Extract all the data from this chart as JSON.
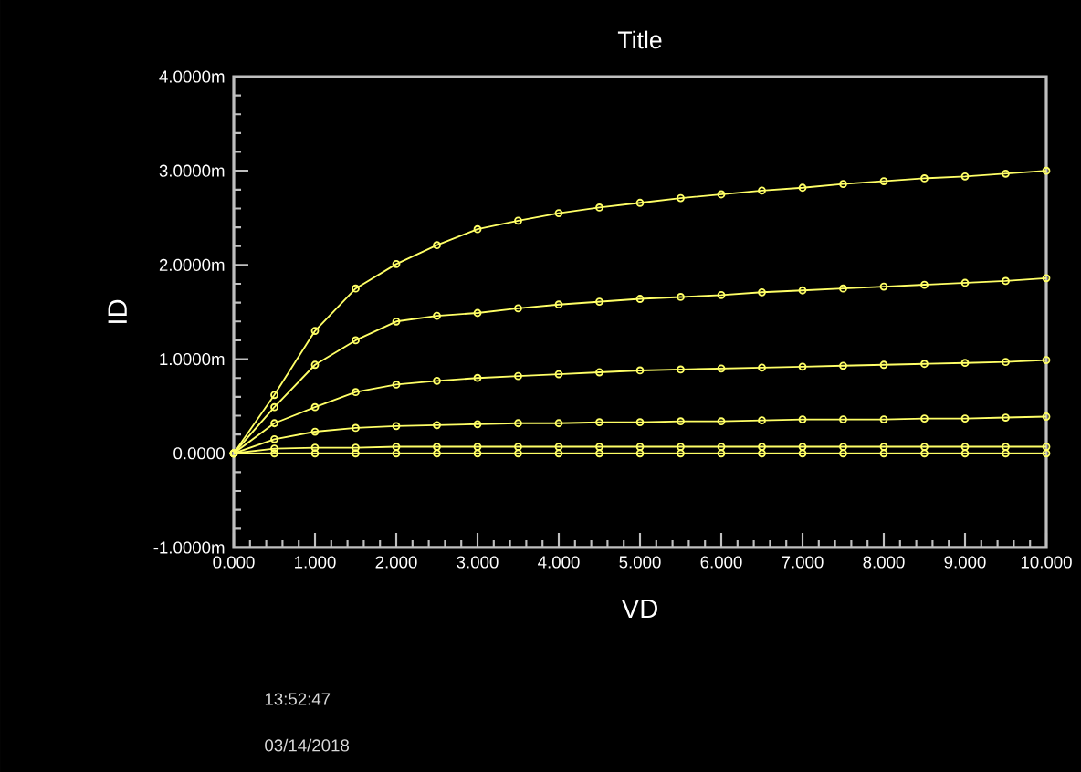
{
  "chart_data": {
    "type": "line",
    "title": "Title",
    "xlabel": "VD",
    "ylabel": "ID",
    "annotations": [
      "13:52:47",
      "03/14/2018"
    ],
    "x": [
      0,
      0.5,
      1,
      1.5,
      2,
      2.5,
      3,
      3.5,
      4,
      4.5,
      5,
      5.5,
      6,
      6.5,
      7,
      7.5,
      8,
      8.5,
      9,
      9.5,
      10
    ],
    "series": [
      {
        "color": "#ffff66",
        "values": [
          0,
          0.62,
          1.3,
          1.75,
          2.01,
          2.21,
          2.38,
          2.47,
          2.55,
          2.61,
          2.66,
          2.71,
          2.75,
          2.79,
          2.82,
          2.86,
          2.89,
          2.92,
          2.94,
          2.97,
          3.0
        ]
      },
      {
        "color": "#ffff66",
        "values": [
          0,
          0.49,
          0.94,
          1.2,
          1.4,
          1.46,
          1.49,
          1.54,
          1.58,
          1.61,
          1.64,
          1.66,
          1.68,
          1.71,
          1.73,
          1.75,
          1.77,
          1.79,
          1.81,
          1.83,
          1.86
        ]
      },
      {
        "color": "#ffff66",
        "values": [
          0,
          0.32,
          0.49,
          0.65,
          0.73,
          0.77,
          0.8,
          0.82,
          0.84,
          0.86,
          0.88,
          0.89,
          0.9,
          0.91,
          0.92,
          0.93,
          0.94,
          0.95,
          0.96,
          0.97,
          0.99
        ]
      },
      {
        "color": "#ffff66",
        "values": [
          0,
          0.15,
          0.23,
          0.27,
          0.29,
          0.3,
          0.31,
          0.32,
          0.32,
          0.33,
          0.33,
          0.34,
          0.34,
          0.35,
          0.36,
          0.36,
          0.36,
          0.37,
          0.37,
          0.38,
          0.39
        ]
      },
      {
        "color": "#ffff66",
        "values": [
          0,
          0.05,
          0.06,
          0.06,
          0.07,
          0.07,
          0.07,
          0.07,
          0.07,
          0.07,
          0.07,
          0.07,
          0.07,
          0.07,
          0.07,
          0.07,
          0.07,
          0.07,
          0.07,
          0.07,
          0.07
        ]
      },
      {
        "color": "#ffff66",
        "values": [
          0,
          0,
          0,
          0,
          0,
          0,
          0,
          0,
          0,
          0,
          0,
          0,
          0,
          0,
          0,
          0,
          0,
          0,
          0,
          0,
          0
        ]
      }
    ],
    "marker": "circle",
    "line_style": "solid",
    "grid": false,
    "xlim": [
      0,
      10
    ],
    "xticks": [
      {
        "value": 0,
        "label": "0.000"
      },
      {
        "value": 1,
        "label": "1.000"
      },
      {
        "value": 2,
        "label": "2.000"
      },
      {
        "value": 3,
        "label": "3.000"
      },
      {
        "value": 4,
        "label": "4.000"
      },
      {
        "value": 5,
        "label": "5.000"
      },
      {
        "value": 6,
        "label": "6.000"
      },
      {
        "value": 7,
        "label": "7.000"
      },
      {
        "value": 8,
        "label": "8.000"
      },
      {
        "value": 9,
        "label": "9.000"
      },
      {
        "value": 10,
        "label": "10.000"
      }
    ],
    "ylim": [
      -1,
      4
    ],
    "yticks": [
      {
        "value": -1,
        "label": "-1.0000m"
      },
      {
        "value": 0,
        "label": "0.0000"
      },
      {
        "value": 1,
        "label": "1.0000m"
      },
      {
        "value": 2,
        "label": "2.0000m"
      },
      {
        "value": 3,
        "label": "3.0000m"
      },
      {
        "value": 4,
        "label": "4.0000m"
      }
    ]
  }
}
